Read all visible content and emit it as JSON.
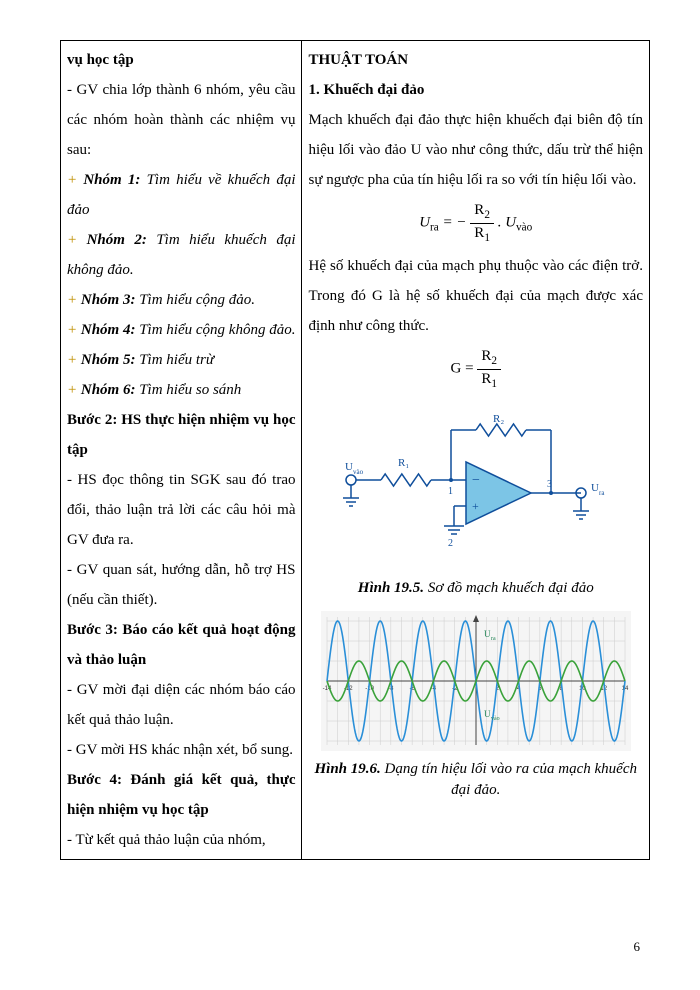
{
  "left": {
    "title_cont": "vụ học tập",
    "intro": "- GV chia lớp thành 6 nhóm, yêu cầu các nhóm hoàn thành các nhiệm vụ sau:",
    "groups": [
      {
        "label": "Nhóm 1:",
        "text": " Tìm hiểu về khuếch đại đảo"
      },
      {
        "label": "Nhóm 2:",
        "text": " Tìm hiểu khuếch đại không đảo."
      },
      {
        "label": "Nhóm 3:",
        "text": " Tìm hiểu cộng đảo."
      },
      {
        "label": "Nhóm 4:",
        "text": " Tìm hiểu cộng không đảo."
      },
      {
        "label": "Nhóm 5:",
        "text": " Tìm hiểu trừ"
      },
      {
        "label": "Nhóm 6:",
        "text": " Tìm hiểu so sánh"
      }
    ],
    "step2_title": "Bước 2: HS thực hiện nhiệm vụ học tập",
    "step2_b1": "- HS đọc thông tin SGK sau đó trao đổi, thảo luận trả lời các câu hỏi mà GV đưa ra.",
    "step2_b2": "- GV quan sát, hướng dẫn, hỗ trợ HS (nếu cần thiết).",
    "step3_title": "Bước 3: Báo cáo kết quả hoạt động và thảo luận",
    "step3_b1": "- GV mời đại diện các nhóm báo cáo kết quả thảo luận.",
    "step3_b2": "- GV mời HS khác nhận xét, bổ sung.",
    "step4_title": "Bước 4: Đánh giá kết quả, thực hiện nhiệm vụ học tập",
    "step4_b1": "- Từ kết quả thảo luận của nhóm,"
  },
  "right": {
    "heading": "THUẬT TOÁN",
    "subheading": "1. Khuếch đại đảo",
    "para1": "Mạch khuếch đại đảo thực hiện khuếch đại biên độ tín hiệu lối vào đảo U vào như công thức, dấu trừ thể hiện sự ngược pha của tín hiệu lối ra so với tín hiệu lối vào.",
    "formula1": {
      "lhs": "U",
      "lhs_sub": "ra",
      "eq": " = − ",
      "num": "R",
      "num_sub": "2",
      "den": "R",
      "den_sub": "1",
      "dot": " . ",
      "rhs": "U",
      "rhs_sub": "vào"
    },
    "para2": "Hệ số khuếch đại của mạch phụ thuộc vào các điện trở. Trong đó G là hệ số khuếch đại của mạch được xác định như công thức.",
    "formula2": {
      "lhs": "G",
      "eq": " = ",
      "num": "R",
      "num_sub": "2",
      "den": "R",
      "den_sub": "1"
    },
    "circuit": {
      "labels": {
        "R1": "R₁",
        "R2": "R₂",
        "Uvao": "U",
        "Uvao_sub": "vào",
        "Ura": "U",
        "Ura_sub": "ra"
      },
      "pins": {
        "n1": "1",
        "n2": "2",
        "n3": "3"
      },
      "colors": {
        "wire": "#0f4e9b",
        "wire_bold": "#0f4e9b",
        "tri_fill": "#7cc5e6",
        "tri_stroke": "#0f4e9b",
        "resistor": "#0f4e9b",
        "ground": "#0f4e9b",
        "label": "#0f4e9b"
      }
    },
    "caption1_bold": "Hình 19.5.",
    "caption1_text": " Sơ đồ mạch khuếch đại đảo",
    "waveform": {
      "grid_color": "#cccccc",
      "x_tick_color": "#333333",
      "label_color": "#1a7f4f",
      "out_color": "#2a8fd8",
      "in_color": "#3aa23a",
      "bg": "#f5f5f5",
      "Ura_label": "U",
      "Ura_sub": "ra",
      "Uvao_label": "U",
      "Uvao_sub": "vào",
      "x_ticks": [
        "-14",
        "-12",
        "-10",
        "-8",
        "-6",
        "-4",
        "-2",
        "",
        "2",
        "4",
        "6",
        "8",
        "10",
        "12",
        "14"
      ],
      "y_max": 3.2,
      "out_amp": 3.0,
      "in_amp": 1.0,
      "period": 4.0,
      "xmin": -14,
      "xmax": 14
    },
    "caption2_bold": "Hình 19.6.",
    "caption2_text": " Dạng tín hiệu lối vào ra của mạch khuếch đại đảo."
  },
  "page_number": "6"
}
